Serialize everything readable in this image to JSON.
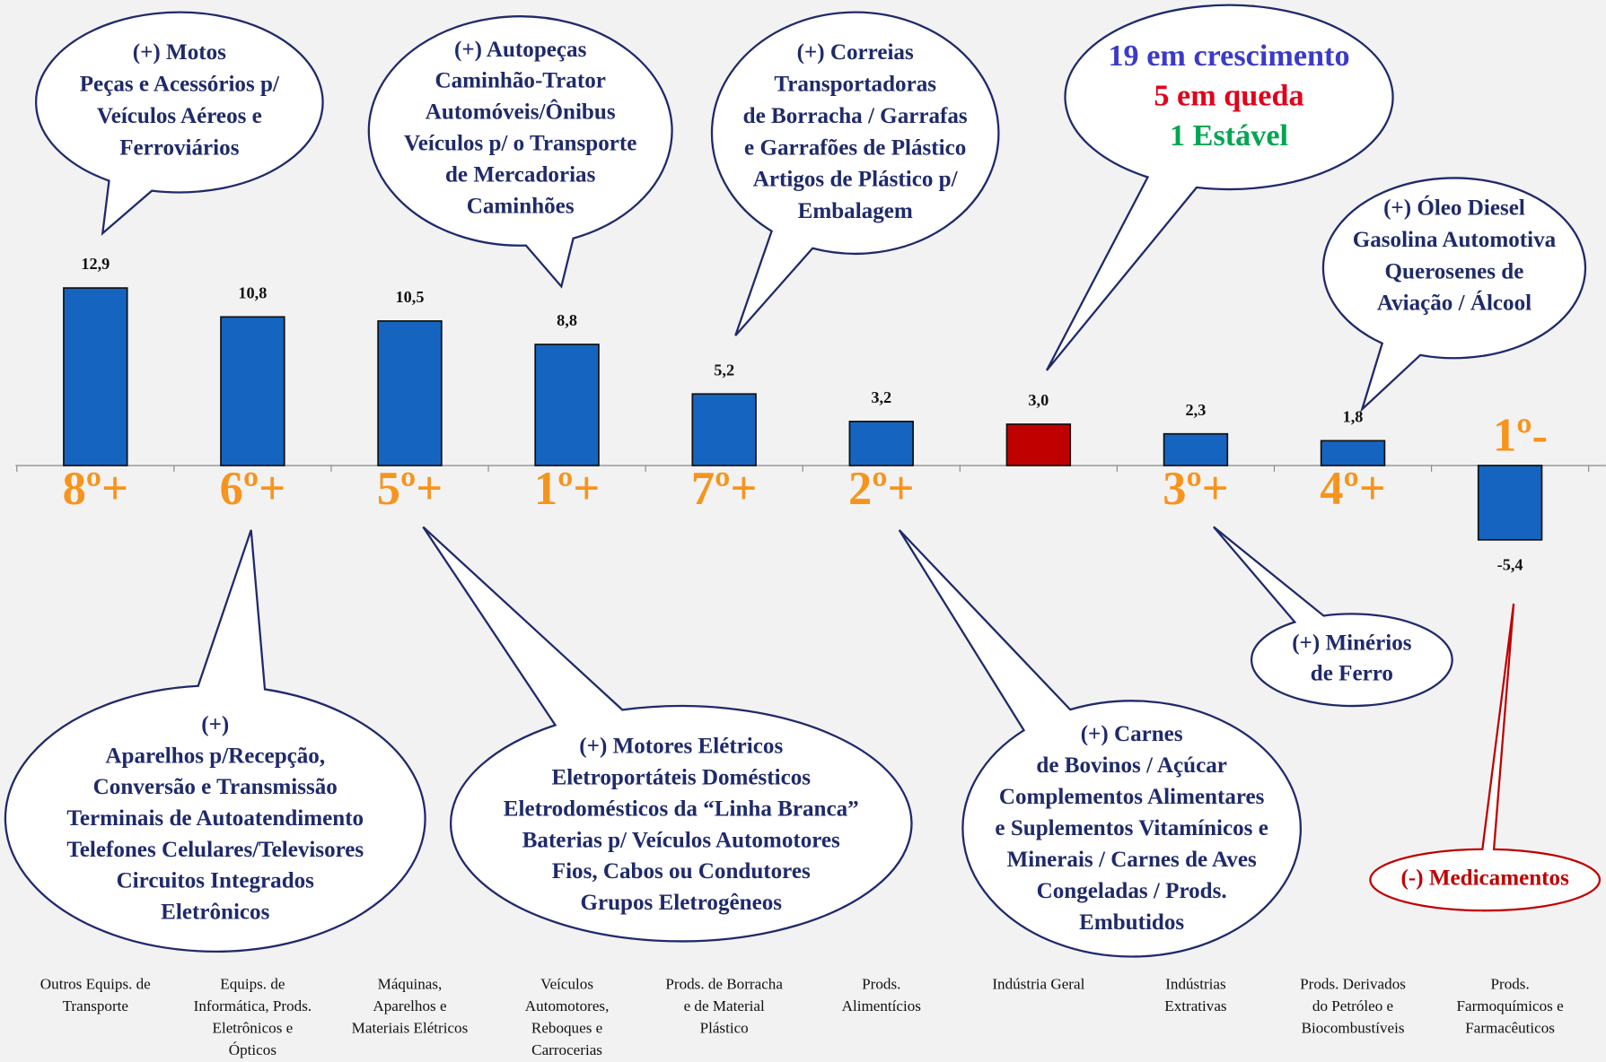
{
  "chart_data": {
    "type": "bar",
    "categories": [
      [
        "Outros Equips. de",
        "Transporte"
      ],
      [
        "Equips. de",
        "Informática, Prods.",
        "Eletrônicos e",
        "Ópticos"
      ],
      [
        "Máquinas,",
        "Aparelhos e",
        "Materiais Elétricos"
      ],
      [
        "Veículos",
        "Automotores,",
        "Reboques e",
        "Carrocerias"
      ],
      [
        "Prods. de Borracha",
        "e de Material",
        "Plástico"
      ],
      [
        "Prods.",
        "Alimentícios"
      ],
      [
        "Indústria Geral"
      ],
      [
        "Indústrias",
        "Extrativas"
      ],
      [
        "Prods. Derivados",
        "do Petróleo e",
        "Biocombustíveis"
      ],
      [
        "Prods.",
        "Farmoquímicos e",
        "Farmacêuticos"
      ]
    ],
    "values": [
      12.9,
      10.8,
      10.5,
      8.8,
      5.2,
      3.2,
      3.0,
      2.3,
      1.8,
      -5.4
    ],
    "value_labels": [
      "12,9",
      "10,8",
      "10,5",
      "8,8",
      "5,2",
      "3,2",
      "3,0",
      "2,3",
      "1,8",
      "-5,4"
    ],
    "colors": [
      "#1565c0",
      "#1565c0",
      "#1565c0",
      "#1565c0",
      "#1565c0",
      "#1565c0",
      "#c00000",
      "#1565c0",
      "#1565c0",
      "#1565c0"
    ],
    "rank_labels": [
      "8º+",
      "6º+",
      "5º+",
      "1º+",
      "7º+",
      "2º+",
      null,
      "3º+",
      "4º+",
      "1º-"
    ],
    "rank_color": "#f7941d",
    "callouts": [
      {
        "lines": [
          "(+) Motos",
          "Peças e Acessórios p/",
          "Veículos Aéreos e",
          "Ferroviários"
        ]
      },
      {
        "lines": [
          "(+) Autopeças",
          "Caminhão-Trator",
          "Automóveis/Ônibus",
          "Veículos p/ o Transporte",
          "de Mercadorias",
          "Caminhões"
        ]
      },
      {
        "lines": [
          "(+) Correias",
          "Transportadoras",
          "de Borracha / Garrafas",
          "e Garrafões de Plástico",
          "Artigos de Plástico p/",
          "Embalagem"
        ]
      },
      {
        "lines": [
          "19 em crescimento",
          "5 em queda",
          "1 Estável"
        ],
        "colors": [
          "#3b3bc8",
          "#e0001a",
          "#00a651"
        ]
      },
      {
        "lines": [
          "(+) Óleo Diesel",
          "Gasolina Automotiva",
          "Querosenes de",
          "Aviação / Álcool"
        ]
      },
      {
        "lines": [
          "(+)",
          "Aparelhos p/Recepção,",
          "Conversão e Transmissão",
          "Terminais de Autoatendimento",
          "Telefones Celulares/Televisores",
          "Circuitos Integrados",
          "Eletrônicos"
        ]
      },
      {
        "lines": [
          "(+) Motores Elétricos",
          "Eletroportáteis Domésticos",
          "Eletrodomésticos da “Linha Branca”",
          "Baterias p/ Veículos Automotores",
          "Fios, Cabos ou Condutores",
          "Grupos Eletrogêneos"
        ]
      },
      {
        "lines": [
          "(+) Carnes",
          "de Bovinos / Açúcar",
          "Complementos Alimentares",
          "e Suplementos Vitamínicos e",
          "Minerais / Carnes de Aves",
          "Congeladas / Prods.",
          "Embutidos"
        ]
      },
      {
        "lines": [
          "(+) Minérios",
          "de Ferro"
        ]
      },
      {
        "lines": [
          "(-) Medicamentos"
        ],
        "color": "#c00000"
      }
    ]
  }
}
